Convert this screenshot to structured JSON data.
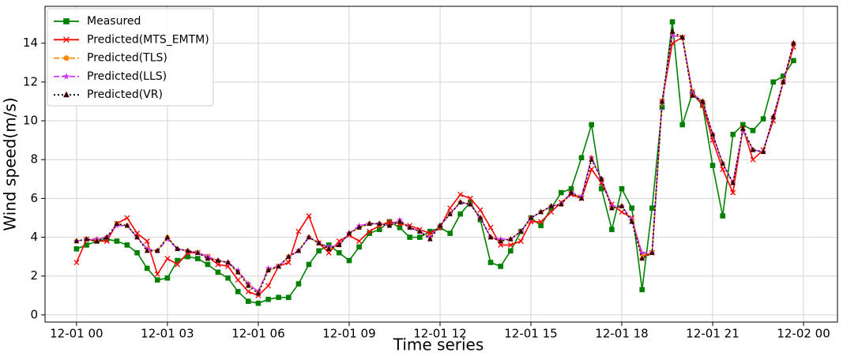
{
  "chart_data": {
    "type": "line",
    "x_label": "Time series",
    "y_label": "Wind speed(m/s)",
    "x": [
      0,
      0.33,
      0.67,
      1,
      1.33,
      1.67,
      2,
      2.33,
      2.67,
      3,
      3.33,
      3.67,
      4,
      4.33,
      4.67,
      5,
      5.33,
      5.67,
      6,
      6.33,
      6.67,
      7,
      7.33,
      7.67,
      8,
      8.33,
      8.67,
      9,
      9.33,
      9.67,
      10,
      10.33,
      10.67,
      11,
      11.33,
      11.67,
      12,
      12.33,
      12.67,
      13,
      13.33,
      13.67,
      14,
      14.33,
      14.67,
      15,
      15.33,
      15.67,
      16,
      16.33,
      16.67,
      17,
      17.33,
      17.67,
      18,
      18.33,
      18.67,
      19,
      19.33,
      19.67,
      20,
      20.33,
      20.67,
      21,
      21.33,
      21.67,
      22,
      22.33,
      22.67,
      23,
      23.33,
      23.67
    ],
    "xlim": [
      -1.04,
      25.12
    ],
    "xticks": [
      {
        "value": 0,
        "label": "12-01 00"
      },
      {
        "value": 3,
        "label": "12-01 03"
      },
      {
        "value": 6,
        "label": "12-01 06"
      },
      {
        "value": 9,
        "label": "12-01 09"
      },
      {
        "value": 12,
        "label": "12-01 12"
      },
      {
        "value": 15,
        "label": "12-01 15"
      },
      {
        "value": 18,
        "label": "12-01 18"
      },
      {
        "value": 21,
        "label": "12-01 21"
      },
      {
        "value": 24,
        "label": "12-02 00"
      }
    ],
    "ylim": [
      -0.37,
      15.9
    ],
    "yticks": [
      0,
      2,
      4,
      6,
      8,
      10,
      12,
      14
    ],
    "grid": true,
    "legend": "upper left",
    "series": [
      {
        "name": "Measured",
        "color": "#008000",
        "marker": "square",
        "dash": "solid",
        "values": [
          3.4,
          3.6,
          3.8,
          3.9,
          3.8,
          3.6,
          3.2,
          2.4,
          1.8,
          1.9,
          2.8,
          3.0,
          2.9,
          2.6,
          2.2,
          1.9,
          1.2,
          0.7,
          0.6,
          0.8,
          0.9,
          0.9,
          1.6,
          2.6,
          3.3,
          3.6,
          3.2,
          2.8,
          3.5,
          4.2,
          4.4,
          4.8,
          4.5,
          4.0,
          4.0,
          4.3,
          4.5,
          4.2,
          5.2,
          5.8,
          4.9,
          2.7,
          2.5,
          3.3,
          4.3,
          5.0,
          4.6,
          5.5,
          6.3,
          6.5,
          8.1,
          9.8,
          6.5,
          4.4,
          6.5,
          5.5,
          1.3,
          5.5,
          10.7,
          15.1,
          9.8,
          11.4,
          10.8,
          7.7,
          5.1,
          9.3,
          9.8,
          9.5,
          10.1,
          12.0,
          12.3,
          13.1
        ]
      },
      {
        "name": "Predicted(MTS_EMTM)",
        "color": "#ff0000",
        "marker": "x",
        "dash": "solid",
        "values": [
          2.7,
          3.9,
          3.8,
          3.8,
          4.7,
          5.0,
          4.2,
          3.8,
          2.1,
          2.9,
          2.6,
          3.2,
          3.2,
          3.0,
          2.6,
          2.5,
          1.8,
          1.2,
          1.0,
          1.5,
          2.5,
          2.7,
          4.3,
          5.1,
          3.7,
          3.2,
          3.8,
          4.1,
          3.8,
          4.3,
          4.6,
          4.8,
          4.7,
          4.6,
          4.4,
          4.2,
          4.5,
          5.5,
          6.2,
          6.0,
          5.4,
          4.5,
          3.6,
          3.6,
          3.8,
          4.8,
          4.8,
          5.3,
          5.8,
          6.2,
          6.0,
          7.5,
          6.8,
          5.7,
          5.3,
          5.0,
          3.0,
          3.2,
          11.0,
          14.0,
          14.3,
          11.5,
          10.8,
          9.0,
          7.5,
          6.3,
          9.6,
          8.0,
          8.5,
          10.0,
          12.0,
          13.8
        ]
      },
      {
        "name": "Predicted(TLS)",
        "color": "#ff8c00",
        "marker": "circle",
        "dash": "dashed",
        "values": [
          3.8,
          3.9,
          3.9,
          4.0,
          4.7,
          4.6,
          4.0,
          3.4,
          3.3,
          4.0,
          3.4,
          3.3,
          3.2,
          3.0,
          2.8,
          2.7,
          2.2,
          1.6,
          1.2,
          2.3,
          2.5,
          3.0,
          3.3,
          4.0,
          3.7,
          3.4,
          3.6,
          4.2,
          4.5,
          4.7,
          4.7,
          4.6,
          4.8,
          4.5,
          4.3,
          4.0,
          4.6,
          5.2,
          5.8,
          5.7,
          5.0,
          4.0,
          3.8,
          3.9,
          4.3,
          5.0,
          5.3,
          5.6,
          5.7,
          6.3,
          6.0,
          8.1,
          7.0,
          5.5,
          5.6,
          4.9,
          3.1,
          3.2,
          11.0,
          14.5,
          14.3,
          11.3,
          11.0,
          9.3,
          7.8,
          6.8,
          9.5,
          8.5,
          8.4,
          10.2,
          12.0,
          14.0
        ]
      },
      {
        "name": "Predicted(LLS)",
        "color": "#cc33ff",
        "marker": "star",
        "dash": "dashed",
        "values": [
          3.8,
          3.9,
          3.9,
          4.0,
          4.6,
          4.6,
          4.0,
          3.4,
          3.3,
          3.9,
          3.4,
          3.3,
          3.2,
          3.0,
          2.8,
          2.7,
          2.3,
          1.6,
          1.2,
          2.4,
          2.5,
          3.0,
          3.3,
          4.0,
          3.7,
          3.5,
          3.6,
          4.2,
          4.6,
          4.7,
          4.7,
          4.6,
          4.9,
          4.5,
          4.3,
          4.0,
          4.6,
          5.2,
          5.8,
          5.7,
          5.0,
          4.0,
          3.9,
          3.9,
          4.3,
          5.0,
          5.3,
          5.6,
          5.7,
          6.3,
          6.1,
          8.1,
          7.0,
          5.6,
          5.6,
          4.9,
          3.2,
          3.2,
          11.0,
          14.4,
          14.3,
          11.4,
          11.0,
          9.3,
          7.8,
          6.8,
          9.5,
          8.5,
          8.4,
          10.2,
          12.0,
          14.0
        ]
      },
      {
        "name": "Predicted(VR)",
        "color": "#000000",
        "marker_color": "#3a0000",
        "marker": "triangle",
        "dash": "dotted",
        "values": [
          3.8,
          3.9,
          3.8,
          4.0,
          4.7,
          4.6,
          4.0,
          3.3,
          3.3,
          4.0,
          3.4,
          3.3,
          3.2,
          2.9,
          2.8,
          2.7,
          2.2,
          1.5,
          1.1,
          2.3,
          2.5,
          3.0,
          3.3,
          4.0,
          3.7,
          3.4,
          3.6,
          4.2,
          4.5,
          4.7,
          4.7,
          4.6,
          4.8,
          4.5,
          4.3,
          3.9,
          4.6,
          5.2,
          5.8,
          5.7,
          5.0,
          4.0,
          3.8,
          3.9,
          4.3,
          5.0,
          5.3,
          5.6,
          5.7,
          6.3,
          6.0,
          8.0,
          7.0,
          5.5,
          5.6,
          4.8,
          2.9,
          3.2,
          11.0,
          14.6,
          14.3,
          11.3,
          11.0,
          9.3,
          7.8,
          6.8,
          9.6,
          8.5,
          8.4,
          10.2,
          12.0,
          14.0
        ]
      }
    ]
  }
}
